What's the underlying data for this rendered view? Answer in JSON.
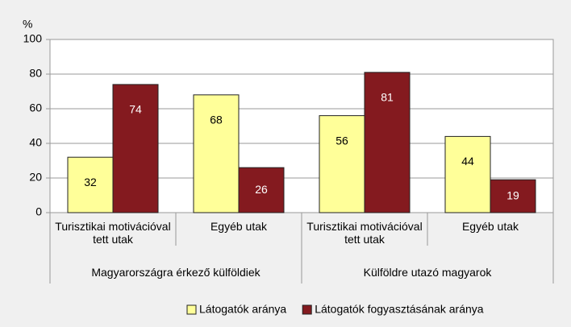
{
  "chart_data": {
    "type": "bar",
    "ylabel": "%",
    "categories": [
      "Turisztikai motivációval tett utak",
      "Egyéb utak",
      "Turisztikai motivációval tett utak",
      "Egyéb utak"
    ],
    "category_groups": [
      "Magyarországra érkező külföldiek",
      "Külföldre utazó magyarok"
    ],
    "series": [
      {
        "name": "Látogatók aránya",
        "color": "#ffff99",
        "label_color": "#000000",
        "values": [
          32,
          68,
          56,
          44
        ]
      },
      {
        "name": "Látogatók fogyasztásának aránya",
        "color": "#841a1f",
        "label_color": "#ffffff",
        "values": [
          74,
          26,
          81,
          19
        ]
      }
    ],
    "ylim": [
      0,
      100
    ],
    "yticks": [
      0,
      20,
      40,
      60,
      80,
      100
    ],
    "grid": true,
    "legend": "bottom"
  }
}
